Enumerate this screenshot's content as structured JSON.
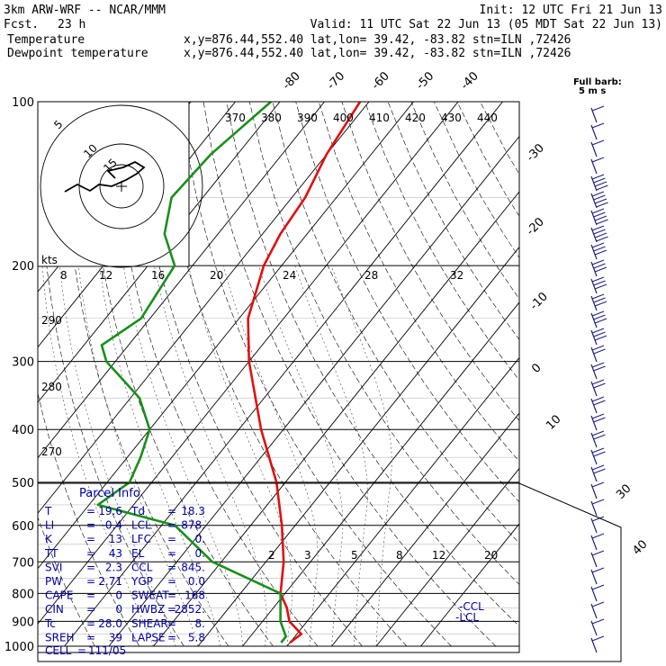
{
  "header": {
    "model": "3km ARW-WRF -- NCAR/MMM",
    "fcst_label": "Fcst.",
    "fcst_value": "23 h",
    "init": "Init: 12 UTC Fri 21 Jun 13",
    "valid": "Valid: 11 UTC Sat 22 Jun 13 (05 MDT Sat 22 Jun 13)",
    "temperature_label": "Temperature",
    "temperature_info": "x,y=876.44,552.40   lat,lon= 39.42, -83.82  stn=ILN ,72426",
    "dewpoint_label": "Dewpoint temperature",
    "dewpoint_info": "x,y=876.44,552.40   lat,lon= 39.42, -83.82  stn=ILN ,72426"
  },
  "colors": {
    "temperature": "#e01010",
    "dewpoint": "#18901a",
    "parcel_info": "#0000a0",
    "wind_barbs": "#202080"
  },
  "chart_data": {
    "type": "skew-t",
    "pressure_levels_labeled": [
      100,
      200,
      300,
      400,
      500,
      600,
      700,
      800,
      900,
      1000
    ],
    "isotherm_labels_top": [
      "-80",
      "-70",
      "-60",
      "-50",
      "-40"
    ],
    "isotherm_labels_right": [
      "-30",
      "-20",
      "-10",
      "0",
      "10",
      "30",
      "40"
    ],
    "theta_labels": [
      "370",
      "380",
      "390",
      "400",
      "410",
      "420",
      "430",
      "440"
    ],
    "mixing_ratio_labels_upper": [
      "8",
      "12",
      "16",
      "20",
      "24",
      "28",
      "32"
    ],
    "mixing_ratio_labels_lower": [
      "2",
      "3",
      "5",
      "8",
      "12",
      "20"
    ],
    "dry_adiabat_labels_left": [
      "290",
      "280",
      "270"
    ],
    "temperature_profile": [
      {
        "p": 100,
        "t": -62
      },
      {
        "p": 125,
        "t": -60
      },
      {
        "p": 150,
        "t": -57
      },
      {
        "p": 175,
        "t": -56
      },
      {
        "p": 200,
        "t": -54
      },
      {
        "p": 250,
        "t": -48
      },
      {
        "p": 300,
        "t": -40
      },
      {
        "p": 400,
        "t": -25
      },
      {
        "p": 500,
        "t": -12
      },
      {
        "p": 600,
        "t": -3
      },
      {
        "p": 700,
        "t": 4
      },
      {
        "p": 800,
        "t": 9
      },
      {
        "p": 850,
        "t": 13
      },
      {
        "p": 900,
        "t": 16
      },
      {
        "p": 950,
        "t": 21
      },
      {
        "p": 985,
        "t": 20
      }
    ],
    "dewpoint_profile": [
      {
        "p": 100,
        "t": -82
      },
      {
        "p": 125,
        "t": -86
      },
      {
        "p": 150,
        "t": -87
      },
      {
        "p": 175,
        "t": -82
      },
      {
        "p": 200,
        "t": -74
      },
      {
        "p": 250,
        "t": -72
      },
      {
        "p": 280,
        "t": -76
      },
      {
        "p": 300,
        "t": -72
      },
      {
        "p": 350,
        "t": -58
      },
      {
        "p": 400,
        "t": -50
      },
      {
        "p": 450,
        "t": -47
      },
      {
        "p": 500,
        "t": -45
      },
      {
        "p": 550,
        "t": -48
      },
      {
        "p": 600,
        "t": -27
      },
      {
        "p": 700,
        "t": -12
      },
      {
        "p": 800,
        "t": 9
      },
      {
        "p": 900,
        "t": 14
      },
      {
        "p": 960,
        "t": 18
      },
      {
        "p": 985,
        "t": 18
      }
    ],
    "hodograph": {
      "ring_labels": [
        "5",
        "10",
        "15"
      ],
      "units_label": "kts"
    },
    "wind_barb_title": "Full barb:",
    "wind_barb_unit": "5 m s",
    "annotations": [
      "CCL",
      "LCL"
    ]
  },
  "parcel_info": {
    "title": "Parcel Info",
    "rows": [
      {
        "l1": "T",
        "v1": "19.6",
        "l2": "Td",
        "v2": "18.3"
      },
      {
        "l1": "LI",
        "v1": "-0.4",
        "l2": "LCL",
        "v2": "878."
      },
      {
        "l1": "K",
        "v1": "13",
        "l2": "LFC",
        "v2": "0."
      },
      {
        "l1": "TT",
        "v1": "43",
        "l2": "EL",
        "v2": "0."
      },
      {
        "l1": "SVI",
        "v1": "2.3",
        "l2": "CCL",
        "v2": "845."
      },
      {
        "l1": "PW",
        "v1": "2.71",
        "l2": "YGP",
        "v2": "0.0"
      },
      {
        "l1": "CAPE",
        "v1": "0",
        "l2": "SWEAT",
        "v2": "168"
      },
      {
        "l1": "CIN",
        "v1": "0",
        "l2": "HWBZ",
        "v2": "2852."
      },
      {
        "l1": "Tc",
        "v1": "28.0",
        "l2": "SHEAR",
        "v2": "8."
      },
      {
        "l1": "SREH",
        "v1": "39",
        "l2": "LAPSE",
        "v2": "5.8"
      }
    ],
    "cell_label": "CELL",
    "cell_value": "111/05"
  }
}
